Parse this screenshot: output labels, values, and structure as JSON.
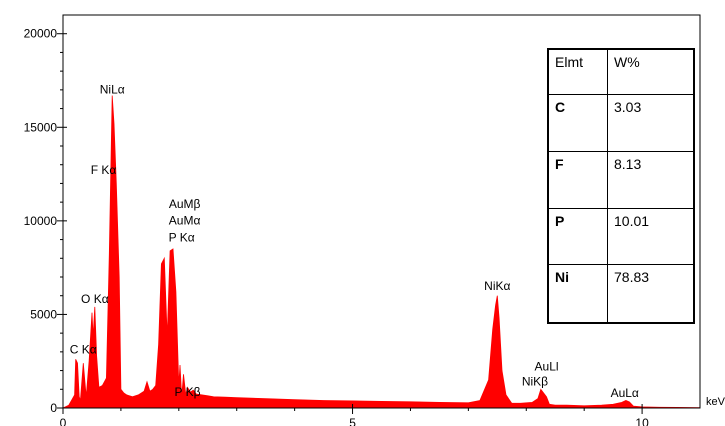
{
  "chart_data": {
    "type": "line",
    "xlabel": "",
    "x_unit_label": "keV",
    "ylabel": "",
    "xlim": [
      0,
      11
    ],
    "ylim": [
      0,
      21000
    ],
    "x_ticks": [
      0,
      5,
      10
    ],
    "y_ticks": [
      0,
      5000,
      10000,
      15000,
      20000
    ],
    "x_tick_labels": [
      "0",
      "5",
      "10"
    ],
    "y_tick_labels": [
      "0",
      "5000",
      "10000",
      "15000",
      "20000"
    ],
    "grid": false,
    "series_color": "#ff0000",
    "series": [
      {
        "x": [
          0.0,
          0.1,
          0.2,
          0.22,
          0.25,
          0.28,
          0.3,
          0.35,
          0.4,
          0.45,
          0.5,
          0.52,
          0.55,
          0.58,
          0.62,
          0.68,
          0.75,
          0.8,
          0.85,
          0.88,
          0.92,
          0.97,
          1.0,
          1.05,
          1.1,
          1.2,
          1.3,
          1.4,
          1.45,
          1.5,
          1.55,
          1.6,
          1.65,
          1.7,
          1.75,
          1.8,
          1.85,
          1.9,
          1.95,
          2.0,
          2.02,
          2.05,
          2.08,
          2.12,
          2.15,
          2.2,
          2.25,
          2.3,
          2.4,
          2.5,
          2.6,
          2.8,
          3.0,
          3.5,
          4.0,
          4.5,
          5.0,
          5.5,
          6.0,
          6.5,
          7.0,
          7.2,
          7.35,
          7.42,
          7.47,
          7.5,
          7.53,
          7.58,
          7.65,
          7.75,
          7.9,
          8.1,
          8.2,
          8.25,
          8.3,
          8.35,
          8.4,
          8.5,
          8.7,
          9.0,
          9.3,
          9.5,
          9.65,
          9.72,
          9.78,
          9.85,
          10.0,
          10.3,
          10.6,
          11.0
        ],
        "y": [
          0,
          150,
          700,
          2600,
          2400,
          600,
          400,
          2400,
          600,
          2500,
          5100,
          3800,
          5400,
          2800,
          1100,
          1200,
          1600,
          8200,
          16700,
          15200,
          12000,
          7000,
          1000,
          800,
          700,
          600,
          700,
          900,
          1400,
          900,
          1000,
          1200,
          3400,
          7700,
          8000,
          3800,
          8400,
          8500,
          6200,
          1200,
          2300,
          600,
          1800,
          700,
          1100,
          850,
          950,
          750,
          700,
          650,
          600,
          580,
          550,
          500,
          450,
          400,
          380,
          350,
          330,
          300,
          280,
          400,
          1500,
          4200,
          5500,
          6000,
          4800,
          2000,
          700,
          250,
          250,
          300,
          500,
          1000,
          800,
          600,
          200,
          150,
          150,
          120,
          150,
          200,
          300,
          400,
          320,
          100,
          60,
          40,
          30,
          20
        ]
      }
    ],
    "annotations": [
      {
        "text": "NiLα",
        "x": 0.85,
        "y": 16800
      },
      {
        "text": "F Kα",
        "x": 0.7,
        "y": 12500
      },
      {
        "text": "AuMβ",
        "x": 2.1,
        "y": 10700
      },
      {
        "text": "AuMα",
        "x": 2.1,
        "y": 9800
      },
      {
        "text": "P Kα",
        "x": 2.05,
        "y": 8900
      },
      {
        "text": "O Kα",
        "x": 0.55,
        "y": 5600
      },
      {
        "text": "C Kα",
        "x": 0.35,
        "y": 2900
      },
      {
        "text": "P Kβ",
        "x": 2.15,
        "y": 650
      },
      {
        "text": "NiKα",
        "x": 7.5,
        "y": 6300
      },
      {
        "text": "AuLl",
        "x": 8.35,
        "y": 2000
      },
      {
        "text": "NiKβ",
        "x": 8.15,
        "y": 1200
      },
      {
        "text": "AuLα",
        "x": 9.7,
        "y": 600
      }
    ]
  },
  "table": {
    "header": [
      "Elmt",
      "W%"
    ],
    "rows": [
      {
        "element": "C",
        "value": "3.03"
      },
      {
        "element": "F",
        "value": "8.13"
      },
      {
        "element": "P",
        "value": "10.01"
      },
      {
        "element": "Ni",
        "value": "78.83"
      }
    ]
  }
}
